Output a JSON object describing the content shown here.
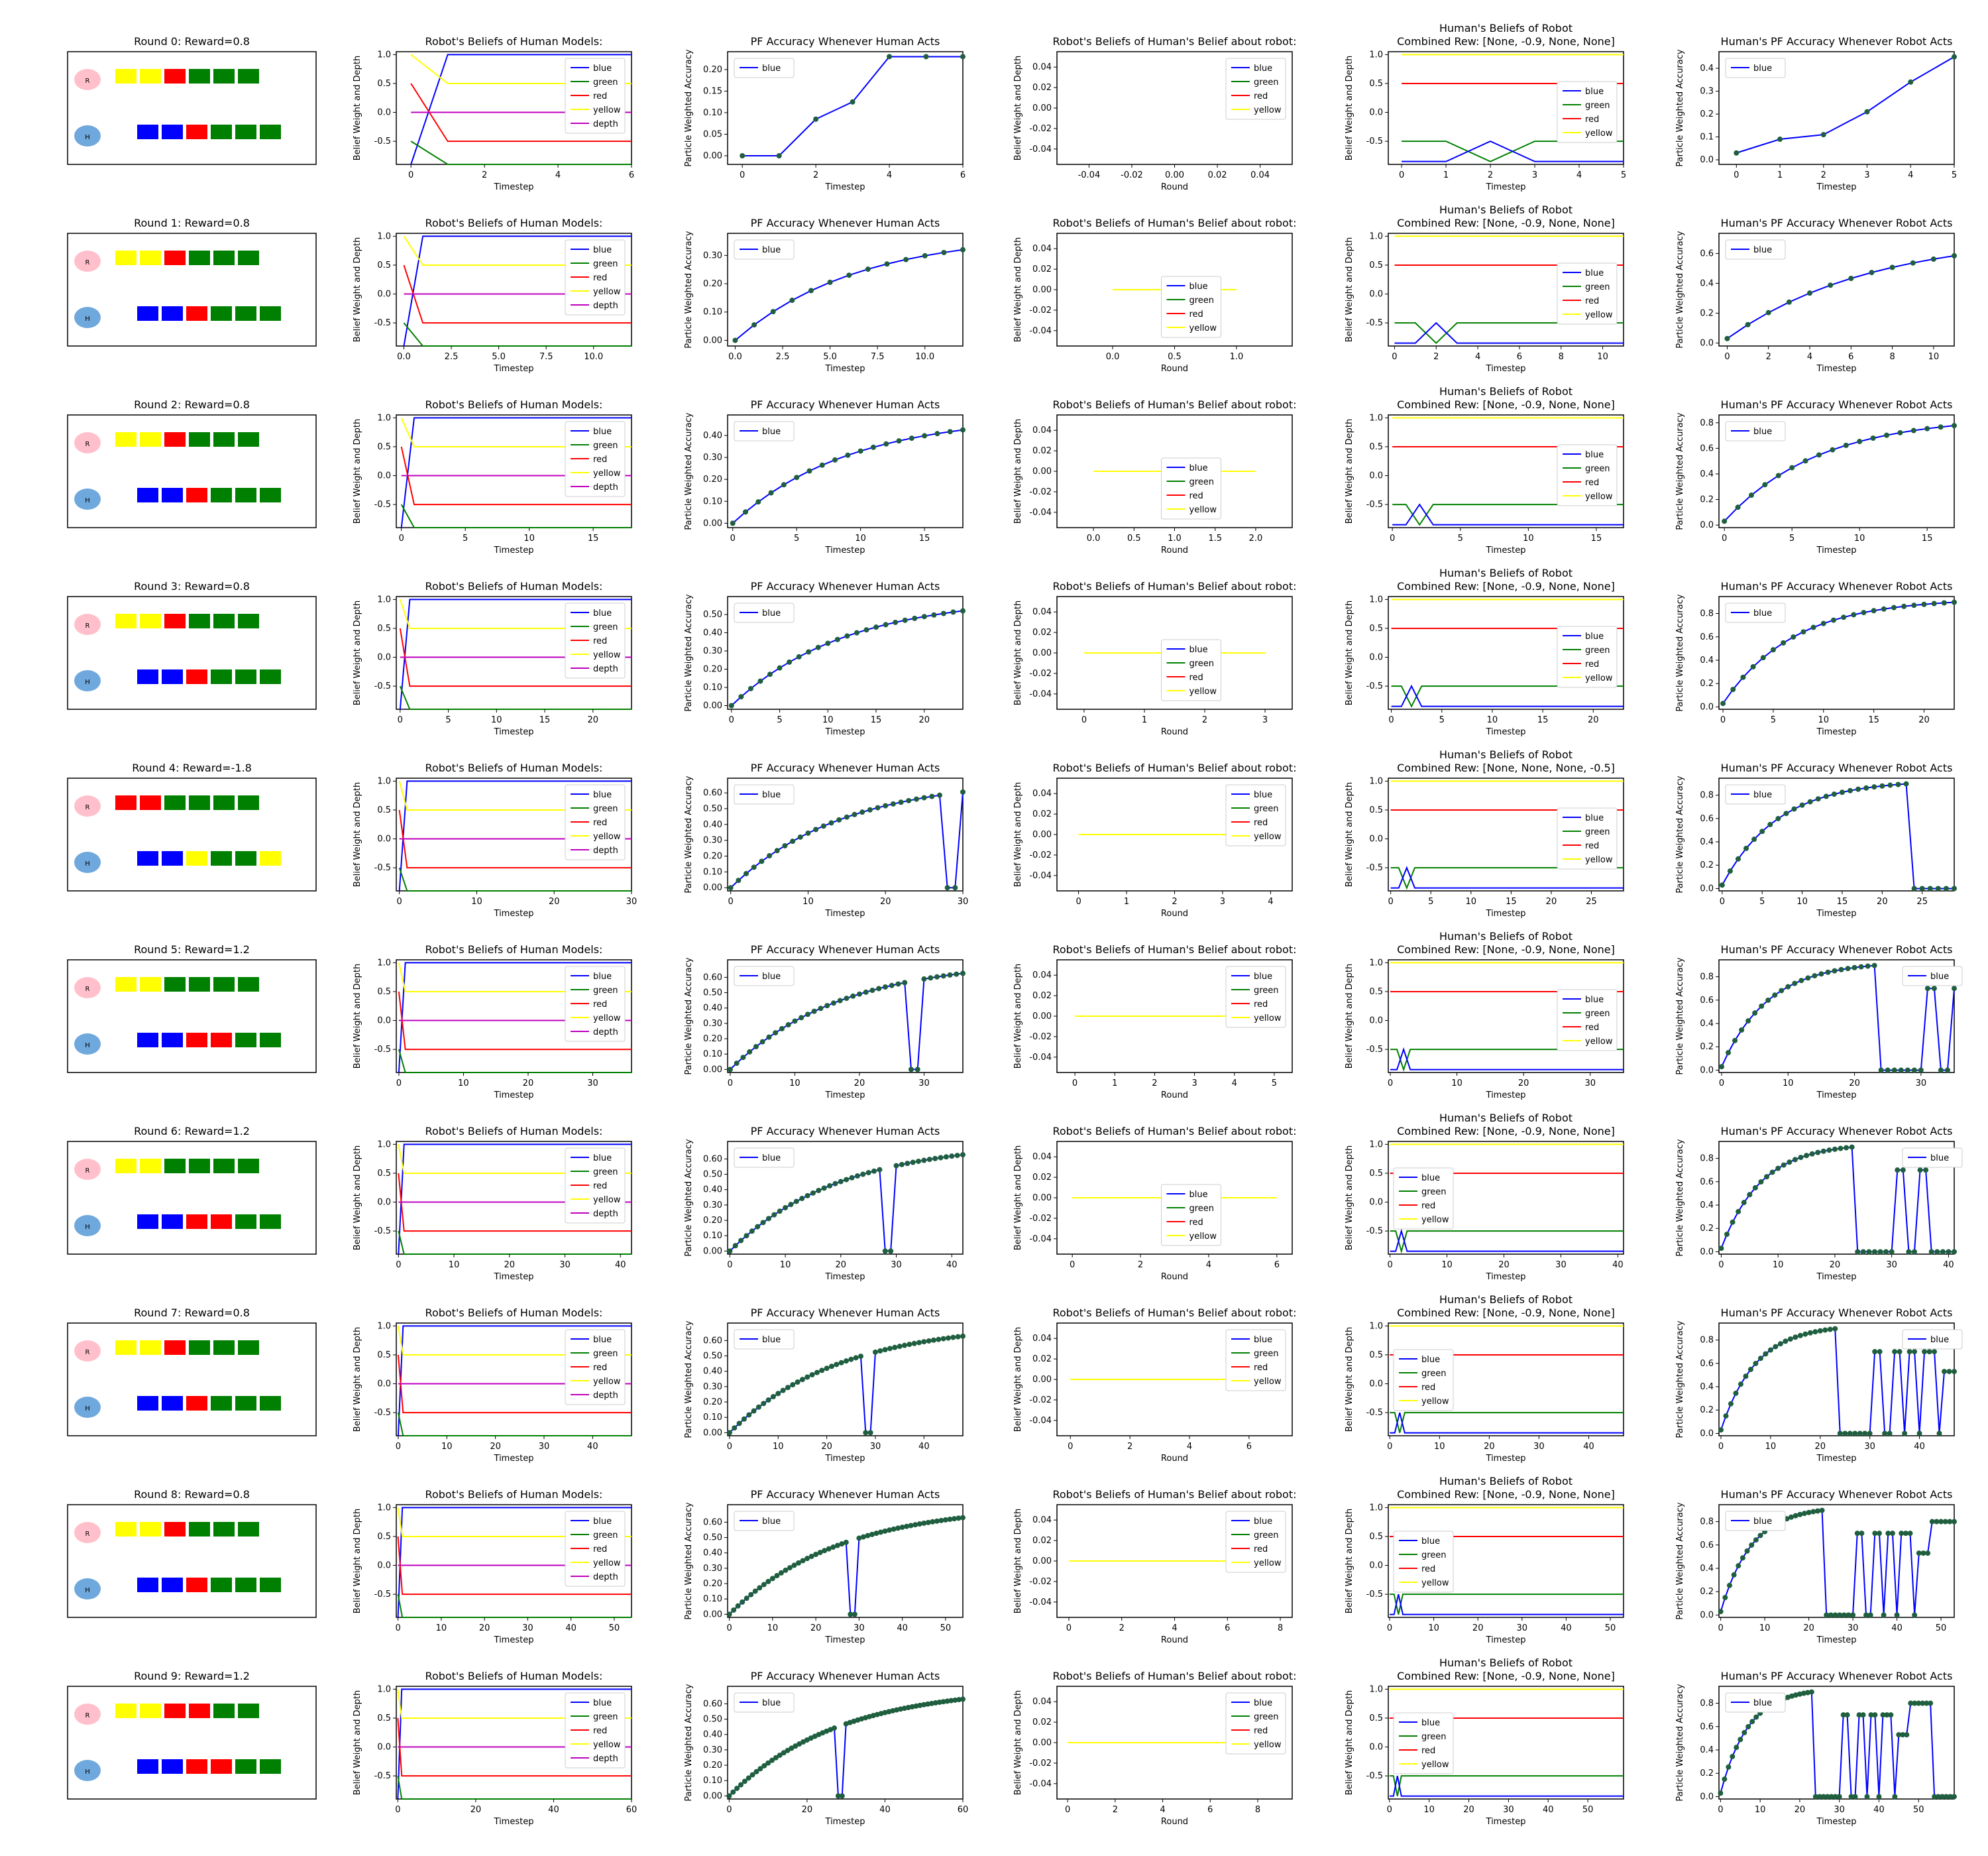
{
  "colors": {
    "blue": "#0000ff",
    "green": "#008000",
    "red": "#ff0000",
    "yellow": "#ffff00",
    "depth": "#bf00bf",
    "robot_token": "#ffc0cb",
    "human_token": "#6fa8dc",
    "marker": "#1f5f3f"
  },
  "common": {
    "legend_beliefs": [
      "blue",
      "green",
      "red",
      "yellow",
      "depth"
    ],
    "legend_colors4": [
      "blue",
      "green",
      "red",
      "yellow"
    ],
    "legend_pf": [
      "blue"
    ],
    "titles": {
      "beliefs": "Robot's Beliefs of Human Models:",
      "pf_human": "PF Accuracy Whenever Human Acts",
      "robot_belief_human_belief": "Robot's Beliefs of Human's Belief about robot:",
      "human_beliefs_line1": "Human's Beliefs of Robot",
      "pf_robot": "Human's PF Accuracy Whenever Robot Acts"
    },
    "xlabels": {
      "timestep": "Timestep",
      "round": "Round"
    },
    "ylabels": {
      "belief": "Belief Weight and Depth",
      "pf": "Particle Weighted Accuracy"
    },
    "token_labels": {
      "robot": "R",
      "human": "H"
    }
  },
  "rows": [
    {
      "round": 0,
      "title": "Round 0: Reward=0.8",
      "robot_blocks": [
        "yellow",
        "yellow",
        "red",
        "green",
        "green",
        "green"
      ],
      "human_blocks": [
        "blue",
        "blue",
        "red",
        "green",
        "green",
        "green"
      ],
      "beliefs_xmax": 6,
      "pf_human_xmax": 6,
      "pf_human_ymax": 0.23,
      "round_xmax": 0,
      "human_beliefs_xmax": 5,
      "human_beliefs_title2": "Combined Rew: [None, -0.9, None, None]",
      "pf_robot_xmax": 5,
      "pf_robot_ymax": 0.45
    },
    {
      "round": 1,
      "title": "Round 1: Reward=0.8",
      "robot_blocks": [
        "yellow",
        "yellow",
        "red",
        "green",
        "green",
        "green"
      ],
      "human_blocks": [
        "blue",
        "blue",
        "red",
        "green",
        "green",
        "green"
      ],
      "beliefs_xmax": 12,
      "pf_human_xmax": 12,
      "pf_human_ymax": 0.36,
      "round_xmax": 1,
      "human_beliefs_xmax": 11,
      "human_beliefs_title2": "Combined Rew: [None, -0.9, None, None]",
      "pf_robot_xmax": 11,
      "pf_robot_ymax": 0.7
    },
    {
      "round": 2,
      "title": "Round 2: Reward=0.8",
      "robot_blocks": [
        "yellow",
        "yellow",
        "red",
        "green",
        "green",
        "green"
      ],
      "human_blocks": [
        "blue",
        "blue",
        "red",
        "green",
        "green",
        "green"
      ],
      "beliefs_xmax": 18,
      "pf_human_xmax": 18,
      "pf_human_ymax": 0.47,
      "round_xmax": 2,
      "human_beliefs_xmax": 17,
      "human_beliefs_title2": "Combined Rew: [None, -0.9, None, None]",
      "pf_robot_xmax": 17,
      "pf_robot_ymax": 0.82
    },
    {
      "round": 3,
      "title": "Round 3: Reward=0.8",
      "robot_blocks": [
        "yellow",
        "yellow",
        "red",
        "green",
        "green",
        "green"
      ],
      "human_blocks": [
        "blue",
        "blue",
        "red",
        "green",
        "green",
        "green"
      ],
      "beliefs_xmax": 24,
      "pf_human_xmax": 24,
      "pf_human_ymax": 0.57,
      "round_xmax": 3,
      "human_beliefs_xmax": 23,
      "human_beliefs_title2": "Combined Rew: [None, -0.9, None, None]",
      "pf_robot_xmax": 23,
      "pf_robot_ymax": 0.9
    },
    {
      "round": 4,
      "title": "Round 4: Reward=-1.8",
      "robot_blocks": [
        "red",
        "red",
        "green",
        "green",
        "green",
        "green"
      ],
      "human_blocks": [
        "blue",
        "blue",
        "yellow",
        "green",
        "green",
        "yellow"
      ],
      "beliefs_xmax": 30,
      "pf_human_xmax": 30,
      "pf_human_ymax": 0.66,
      "round_xmax": 4,
      "human_beliefs_xmax": 29,
      "human_beliefs_title2": "Combined Rew: [None, None, None, -0.5]",
      "pf_robot_xmax": 29,
      "pf_robot_ymax": 0.9
    },
    {
      "round": 5,
      "title": "Round 5: Reward=1.2",
      "robot_blocks": [
        "yellow",
        "yellow",
        "green",
        "green",
        "green",
        "green"
      ],
      "human_blocks": [
        "blue",
        "blue",
        "red",
        "red",
        "green",
        "green"
      ],
      "beliefs_xmax": 36,
      "pf_human_xmax": 36,
      "pf_human_ymax": 0.68,
      "round_xmax": 5,
      "human_beliefs_xmax": 35,
      "human_beliefs_title2": "Combined Rew: [None, -0.9, None, None]",
      "pf_robot_xmax": 35,
      "pf_robot_ymax": 0.9
    },
    {
      "round": 6,
      "title": "Round 6: Reward=1.2",
      "robot_blocks": [
        "yellow",
        "yellow",
        "green",
        "green",
        "green",
        "green"
      ],
      "human_blocks": [
        "blue",
        "blue",
        "red",
        "red",
        "green",
        "green"
      ],
      "beliefs_xmax": 42,
      "pf_human_xmax": 42,
      "pf_human_ymax": 0.68,
      "round_xmax": 6,
      "human_beliefs_xmax": 41,
      "human_beliefs_title2": "Combined Rew: [None, -0.9, None, None]",
      "pf_robot_xmax": 41,
      "pf_robot_ymax": 0.9
    },
    {
      "round": 7,
      "title": "Round 7: Reward=0.8",
      "robot_blocks": [
        "yellow",
        "yellow",
        "red",
        "green",
        "green",
        "green"
      ],
      "human_blocks": [
        "blue",
        "blue",
        "red",
        "green",
        "green",
        "green"
      ],
      "beliefs_xmax": 48,
      "pf_human_xmax": 48,
      "pf_human_ymax": 0.68,
      "round_xmax": 7,
      "human_beliefs_xmax": 47,
      "human_beliefs_title2": "Combined Rew: [None, -0.9, None, None]",
      "pf_robot_xmax": 47,
      "pf_robot_ymax": 0.9
    },
    {
      "round": 8,
      "title": "Round 8: Reward=0.8",
      "robot_blocks": [
        "yellow",
        "yellow",
        "red",
        "green",
        "green",
        "green"
      ],
      "human_blocks": [
        "blue",
        "blue",
        "red",
        "green",
        "green",
        "green"
      ],
      "beliefs_xmax": 54,
      "pf_human_xmax": 54,
      "pf_human_ymax": 0.68,
      "round_xmax": 8,
      "human_beliefs_xmax": 53,
      "human_beliefs_title2": "Combined Rew: [None, -0.9, None, None]",
      "pf_robot_xmax": 53,
      "pf_robot_ymax": 0.9
    },
    {
      "round": 9,
      "title": "Round 9: Reward=1.2",
      "robot_blocks": [
        "yellow",
        "yellow",
        "red",
        "red",
        "green",
        "green"
      ],
      "human_blocks": [
        "blue",
        "blue",
        "red",
        "red",
        "green",
        "green"
      ],
      "beliefs_xmax": 60,
      "pf_human_xmax": 60,
      "pf_human_ymax": 0.68,
      "round_xmax": 9,
      "human_beliefs_xmax": 59,
      "human_beliefs_title2": "Combined Rew: [None, -0.9, None, None]",
      "pf_robot_xmax": 59,
      "pf_robot_ymax": 0.9
    }
  ],
  "chart_data": [
    {
      "type": "line",
      "round": 0,
      "panel": "pf_human",
      "x": [
        0,
        1,
        2,
        3,
        4,
        5,
        6
      ],
      "values": [
        0,
        0,
        0.085,
        0.125,
        0.23,
        0.23,
        0.23
      ]
    },
    {
      "type": "line",
      "round": 0,
      "panel": "pf_robot",
      "x": [
        0,
        1,
        2,
        3,
        4,
        5
      ],
      "values": [
        0.03,
        0.09,
        0.11,
        0.21,
        0.34,
        0.45
      ]
    },
    {
      "type": "line",
      "round": 9,
      "panel": "pf_human",
      "x_range": [
        0,
        60
      ],
      "ylim": [
        0,
        0.68
      ]
    },
    {
      "type": "line",
      "round": 9,
      "panel": "pf_robot",
      "x_range": [
        0,
        59
      ],
      "ylim": [
        0,
        0.9
      ]
    }
  ]
}
